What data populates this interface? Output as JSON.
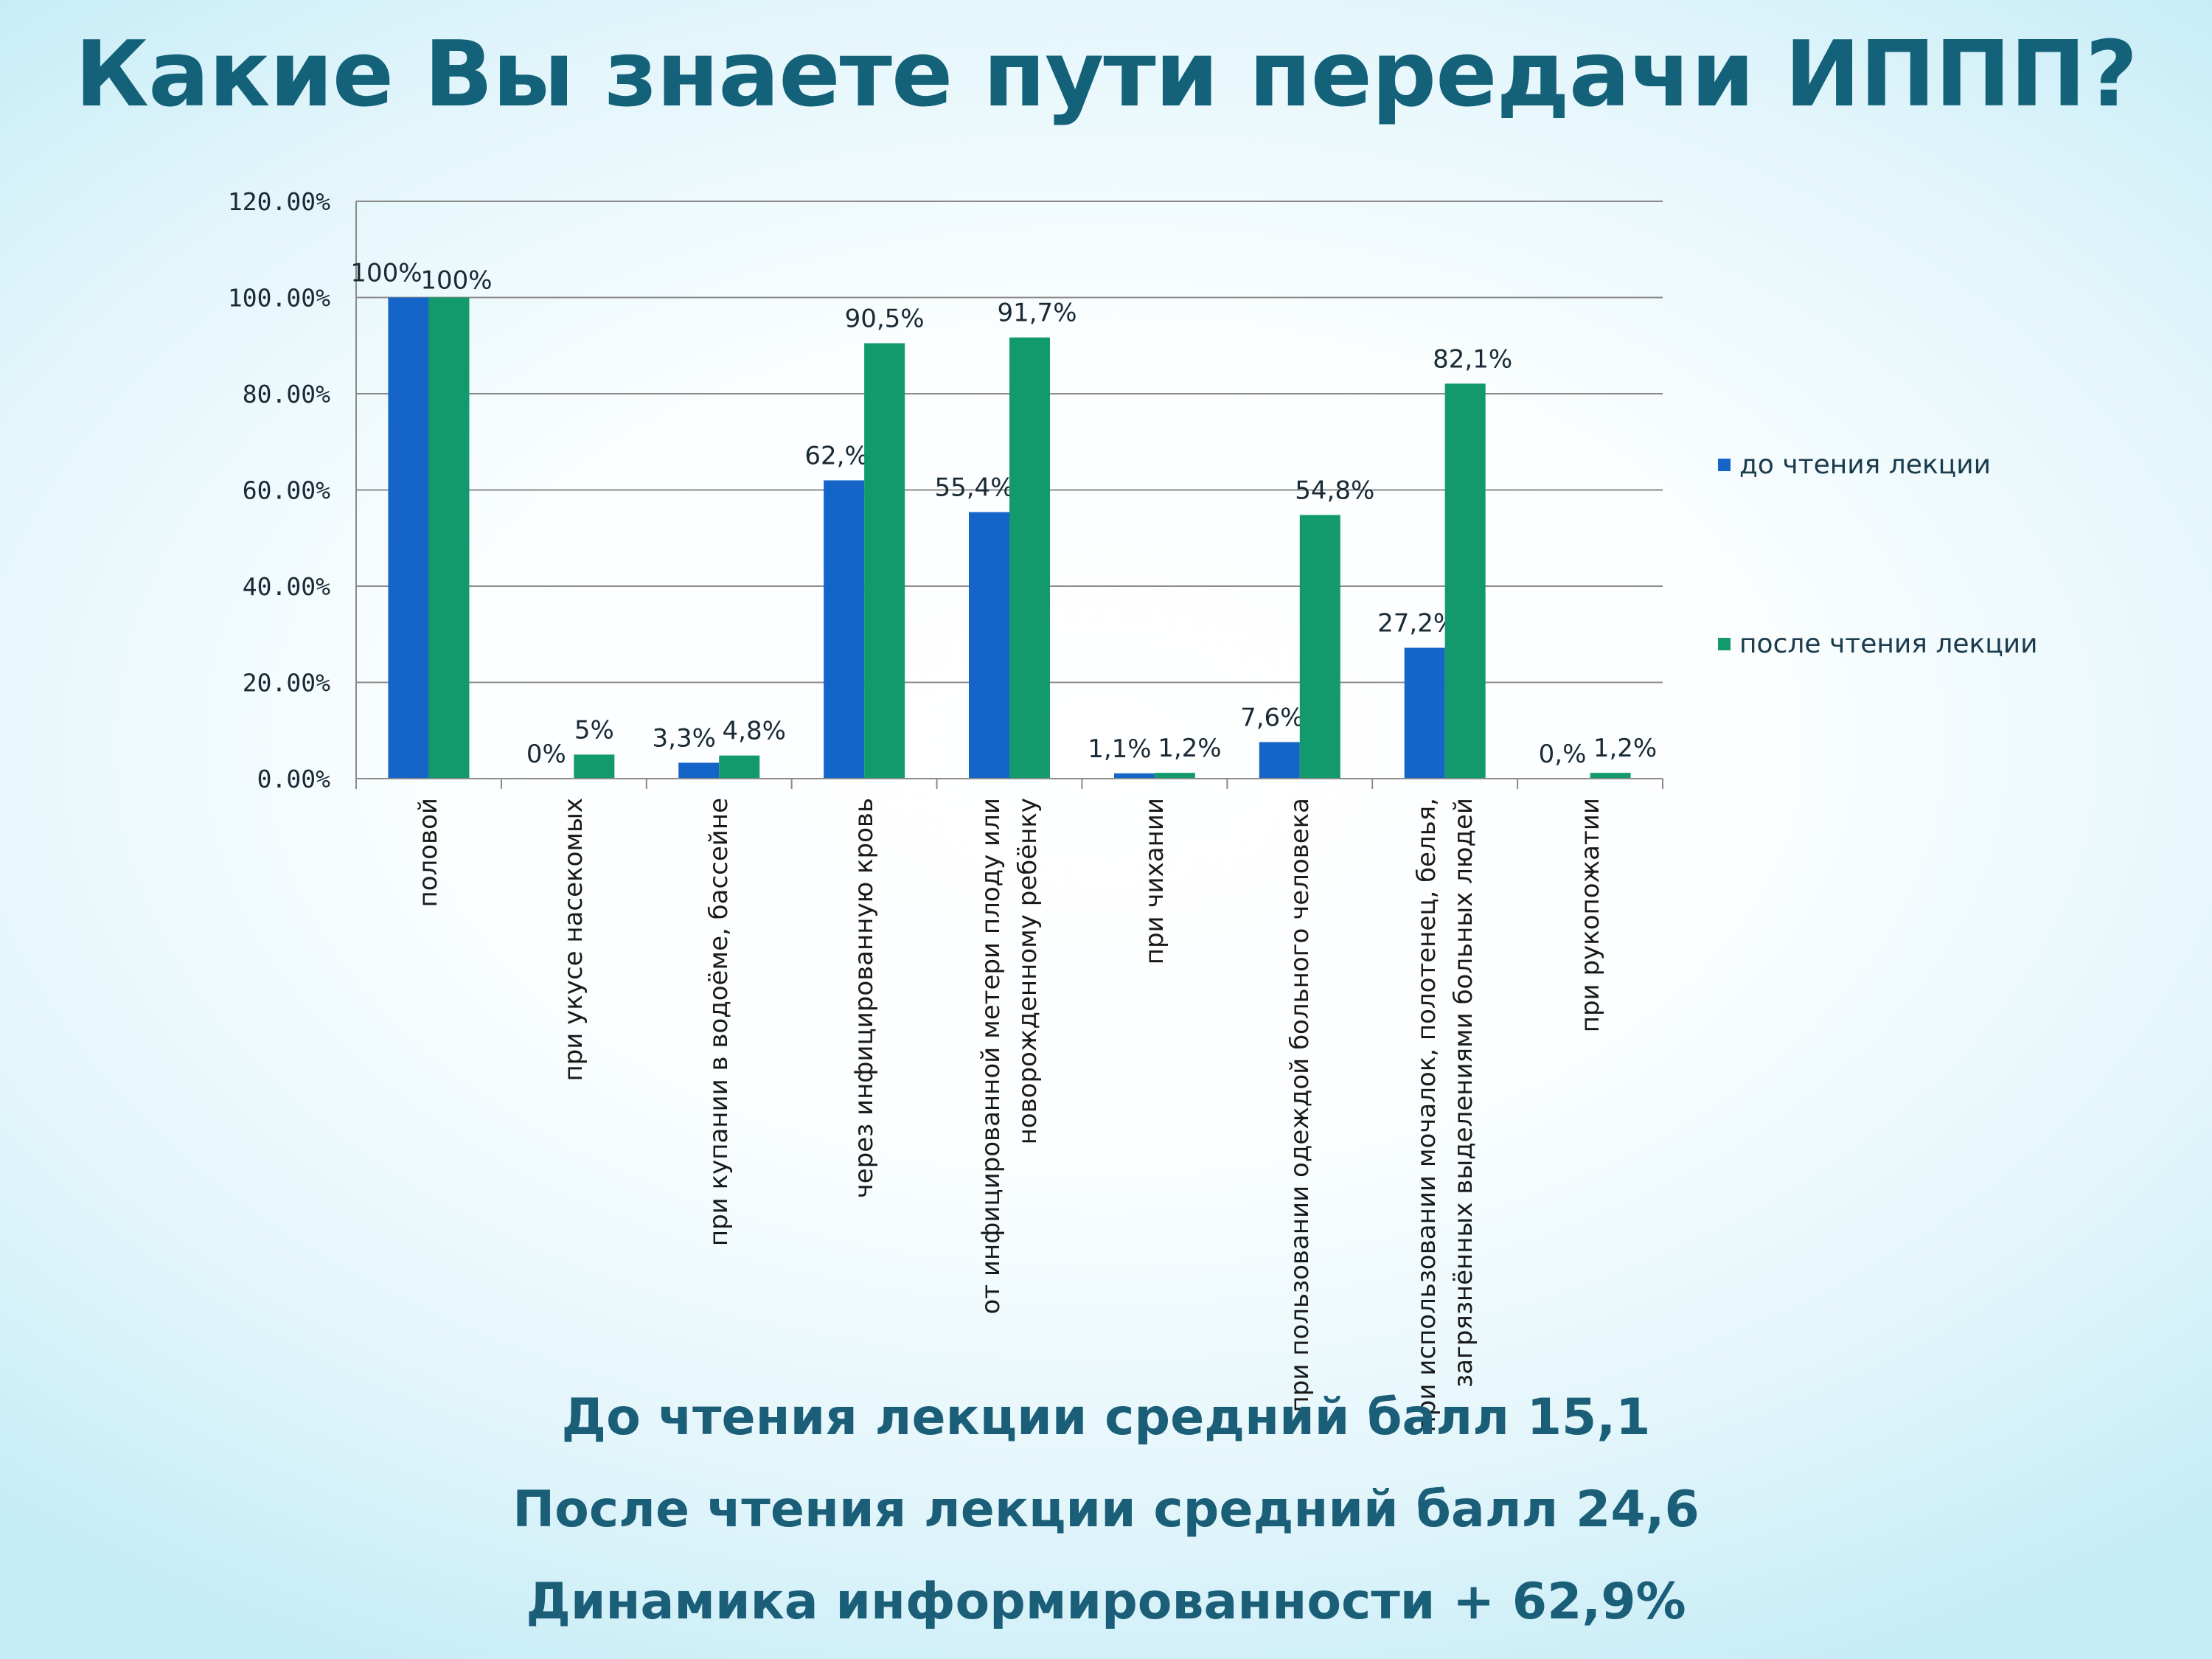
{
  "title": "Какие Вы знаете пути передачи ИППП?",
  "summary": [
    "До чтения лекции средний балл 15,1",
    "После чтения лекции средний балл 24,6",
    "Динамика информированности + 62,9%"
  ],
  "chart_data": {
    "type": "bar",
    "title": "",
    "xlabel": "",
    "ylabel": "",
    "ylim": [
      0,
      1.2
    ],
    "yticks": [
      "0.00%",
      "20.00%",
      "40.00%",
      "60.00%",
      "80.00%",
      "100.00%",
      "120.00%"
    ],
    "grid": true,
    "legend_position": "right",
    "categories": [
      "половой",
      "при укусе насекомых",
      "при купании в водоёме, бассейне",
      "через инфицированную кровь",
      "от инфицированной метери плоду или новорожденному ребёнку",
      "при чихании",
      "при пользовании одеждой больного человека",
      "при использовании мочалок, полотенец, белья, загрязнённых выделениями больных людей",
      "при рукопожатии"
    ],
    "series": [
      {
        "name": "до чтения лекции",
        "color": "#1565c8",
        "values": [
          1.0,
          0.0,
          0.033,
          0.62,
          0.554,
          0.011,
          0.076,
          0.272,
          0.0
        ],
        "labels": [
          "100%",
          "0%",
          "3,3%",
          "62,%",
          "55,4%",
          "1,1%",
          "7,6%",
          "27,2%",
          "0,%"
        ]
      },
      {
        "name": "после чтения лекции",
        "color": "#129a6c",
        "values": [
          1.0,
          0.05,
          0.048,
          0.905,
          0.917,
          0.012,
          0.548,
          0.821,
          0.012
        ],
        "labels": [
          "100%",
          "5%",
          "4,8%",
          "90,5%",
          "91,7%",
          "1,2%",
          "54,8%",
          "82,1%",
          "1,2%"
        ]
      }
    ]
  }
}
